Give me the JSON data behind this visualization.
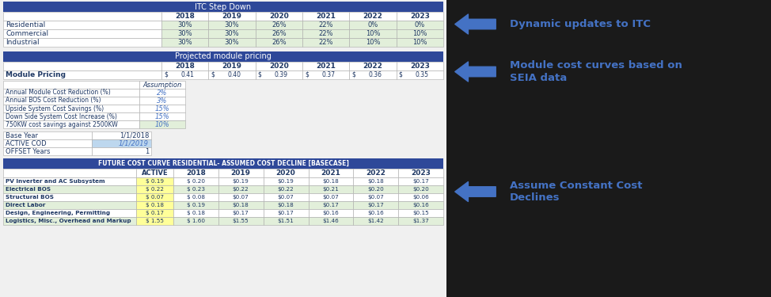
{
  "bg_color": "#f0f0f0",
  "right_bg": "#1a1a1a",
  "table_bg": "#ffffff",
  "header_blue": "#2E4899",
  "row_green": "#E2EFDA",
  "row_yellow": "#FFFF99",
  "row_blue_light": "#BDD7EE",
  "text_white": "#ffffff",
  "text_dark": "#1F3864",
  "text_black": "#000000",
  "arrow_color": "#4472C4",
  "annotation_color": "#4472C4",
  "grid_color": "#aaaaaa",
  "itc_title": "ITC Step Down",
  "itc_years": [
    "2018",
    "2019",
    "2020",
    "2021",
    "2022",
    "2023"
  ],
  "itc_rows": [
    [
      "Residential",
      "30%",
      "30%",
      "26%",
      "22%",
      "0%",
      "0%"
    ],
    [
      "Commercial",
      "30%",
      "30%",
      "26%",
      "22%",
      "10%",
      "10%"
    ],
    [
      "Industrial",
      "30%",
      "30%",
      "26%",
      "22%",
      "10%",
      "10%"
    ]
  ],
  "module_title": "Projected module pricing",
  "module_years": [
    "2018",
    "2019",
    "2020",
    "2021",
    "2022",
    "2023"
  ],
  "module_pricing_label": "Module Pricing",
  "module_pricing_values": [
    "0.41",
    "0.40",
    "0.39",
    "0.37",
    "0.36",
    "0.35"
  ],
  "assumption_title": "Assumption",
  "assumption_rows": [
    [
      "Annual Module Cost Reduction (%)",
      "2%"
    ],
    [
      "Annual BOS Cost Reduction (%)",
      "3%"
    ],
    [
      "Upside System Cost Savings (%)",
      "15%"
    ],
    [
      "Down Side System Cost Increase (%)",
      "15%"
    ],
    [
      "750KW cost savings against 2500KW",
      "10%"
    ]
  ],
  "assumption_val_colors": [
    "#ffffff",
    "#ffffff",
    "#ffffff",
    "#ffffff",
    "#E2EFDA"
  ],
  "base_rows": [
    [
      "Base Year",
      "1/1/2018",
      "#ffffff"
    ],
    [
      "ACTIVE COD",
      "1/1/2019",
      "#BDD7EE"
    ],
    [
      "OFFSET Years",
      "1",
      "#ffffff"
    ]
  ],
  "future_title": "FUTURE COST CURVE RESIDENTIAL- ASSUMED COST DECLINE [BASECASE]",
  "future_years": [
    "2018",
    "2019",
    "2020",
    "2021",
    "2022",
    "2023"
  ],
  "future_rows": [
    [
      "PV Inverter and AC Subsystem",
      "$ 0.19",
      "$ 0.20",
      "$0.19",
      "$0.19",
      "$0.18",
      "$0.18",
      "$0.17",
      "#ffffff"
    ],
    [
      "Electrical BOS",
      "$ 0.22",
      "$ 0.23",
      "$0.22",
      "$0.22",
      "$0.21",
      "$0.20",
      "$0.20",
      "#E2EFDA"
    ],
    [
      "Structural BOS",
      "$ 0.07",
      "$ 0.08",
      "$0.07",
      "$0.07",
      "$0.07",
      "$0.07",
      "$0.06",
      "#ffffff"
    ],
    [
      "Direct Labor",
      "$ 0.18",
      "$ 0.19",
      "$0.18",
      "$0.18",
      "$0.17",
      "$0.17",
      "$0.16",
      "#E2EFDA"
    ],
    [
      "Design, Engineering, Permitting",
      "$ 0.17",
      "$ 0.18",
      "$0.17",
      "$0.17",
      "$0.16",
      "$0.16",
      "$0.15",
      "#ffffff"
    ],
    [
      "Logistics, Misc., Overhead and Markup",
      "$ 1.55",
      "$ 1.60",
      "$1.55",
      "$1.51",
      "$1.46",
      "$1.42",
      "$1.37",
      "#E2EFDA"
    ]
  ],
  "future_active_color": "#FFFF99",
  "annotations": [
    "Dynamic updates to ITC",
    "Module cost curves based on\nSEIA data",
    "Assume Constant Cost\nDeclines"
  ]
}
